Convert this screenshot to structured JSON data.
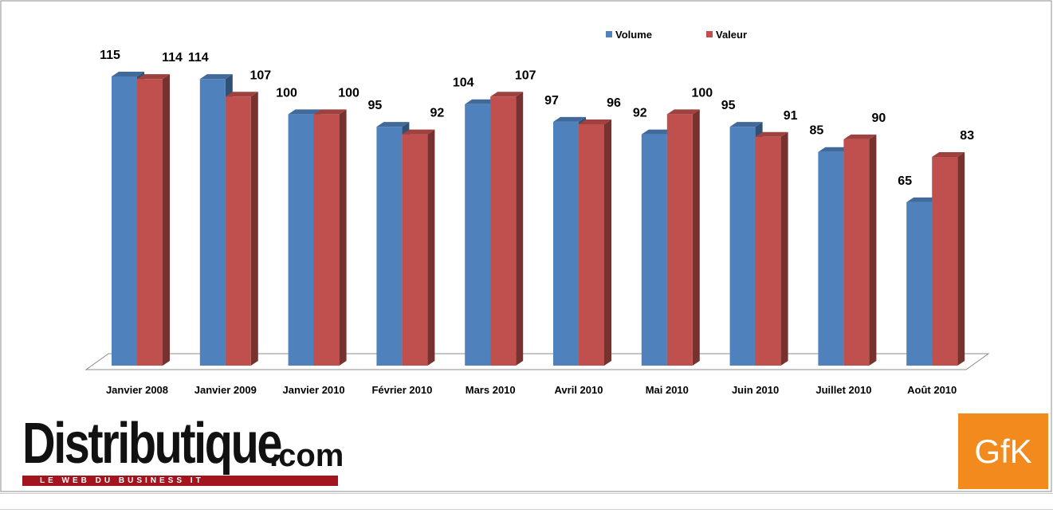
{
  "chart_data": {
    "type": "bar",
    "categories": [
      "Janvier 2008",
      "Janvier 2009",
      "Janvier 2010",
      "Février 2010",
      "Mars 2010",
      "Avril 2010",
      "Mai 2010",
      "Juin 2010",
      "Juillet 2010",
      "Août 2010"
    ],
    "series": [
      {
        "name": "Volume",
        "values": [
          115,
          114,
          100,
          95,
          104,
          97,
          92,
          95,
          85,
          65
        ],
        "color": "#4f81bd"
      },
      {
        "name": "Valeur",
        "values": [
          114,
          107,
          100,
          92,
          107,
          96,
          100,
          91,
          90,
          83
        ],
        "color": "#c0504d"
      }
    ],
    "ylim": [
      0,
      115
    ],
    "grid": false,
    "legend": "top-right",
    "style": "3d-clustered-column"
  },
  "logos": {
    "distributique_word": "Distributique",
    "distributique_suffix": ".com",
    "distributique_tagline": "LE WEB DU BUSINESS IT",
    "gfk": "GfK"
  }
}
